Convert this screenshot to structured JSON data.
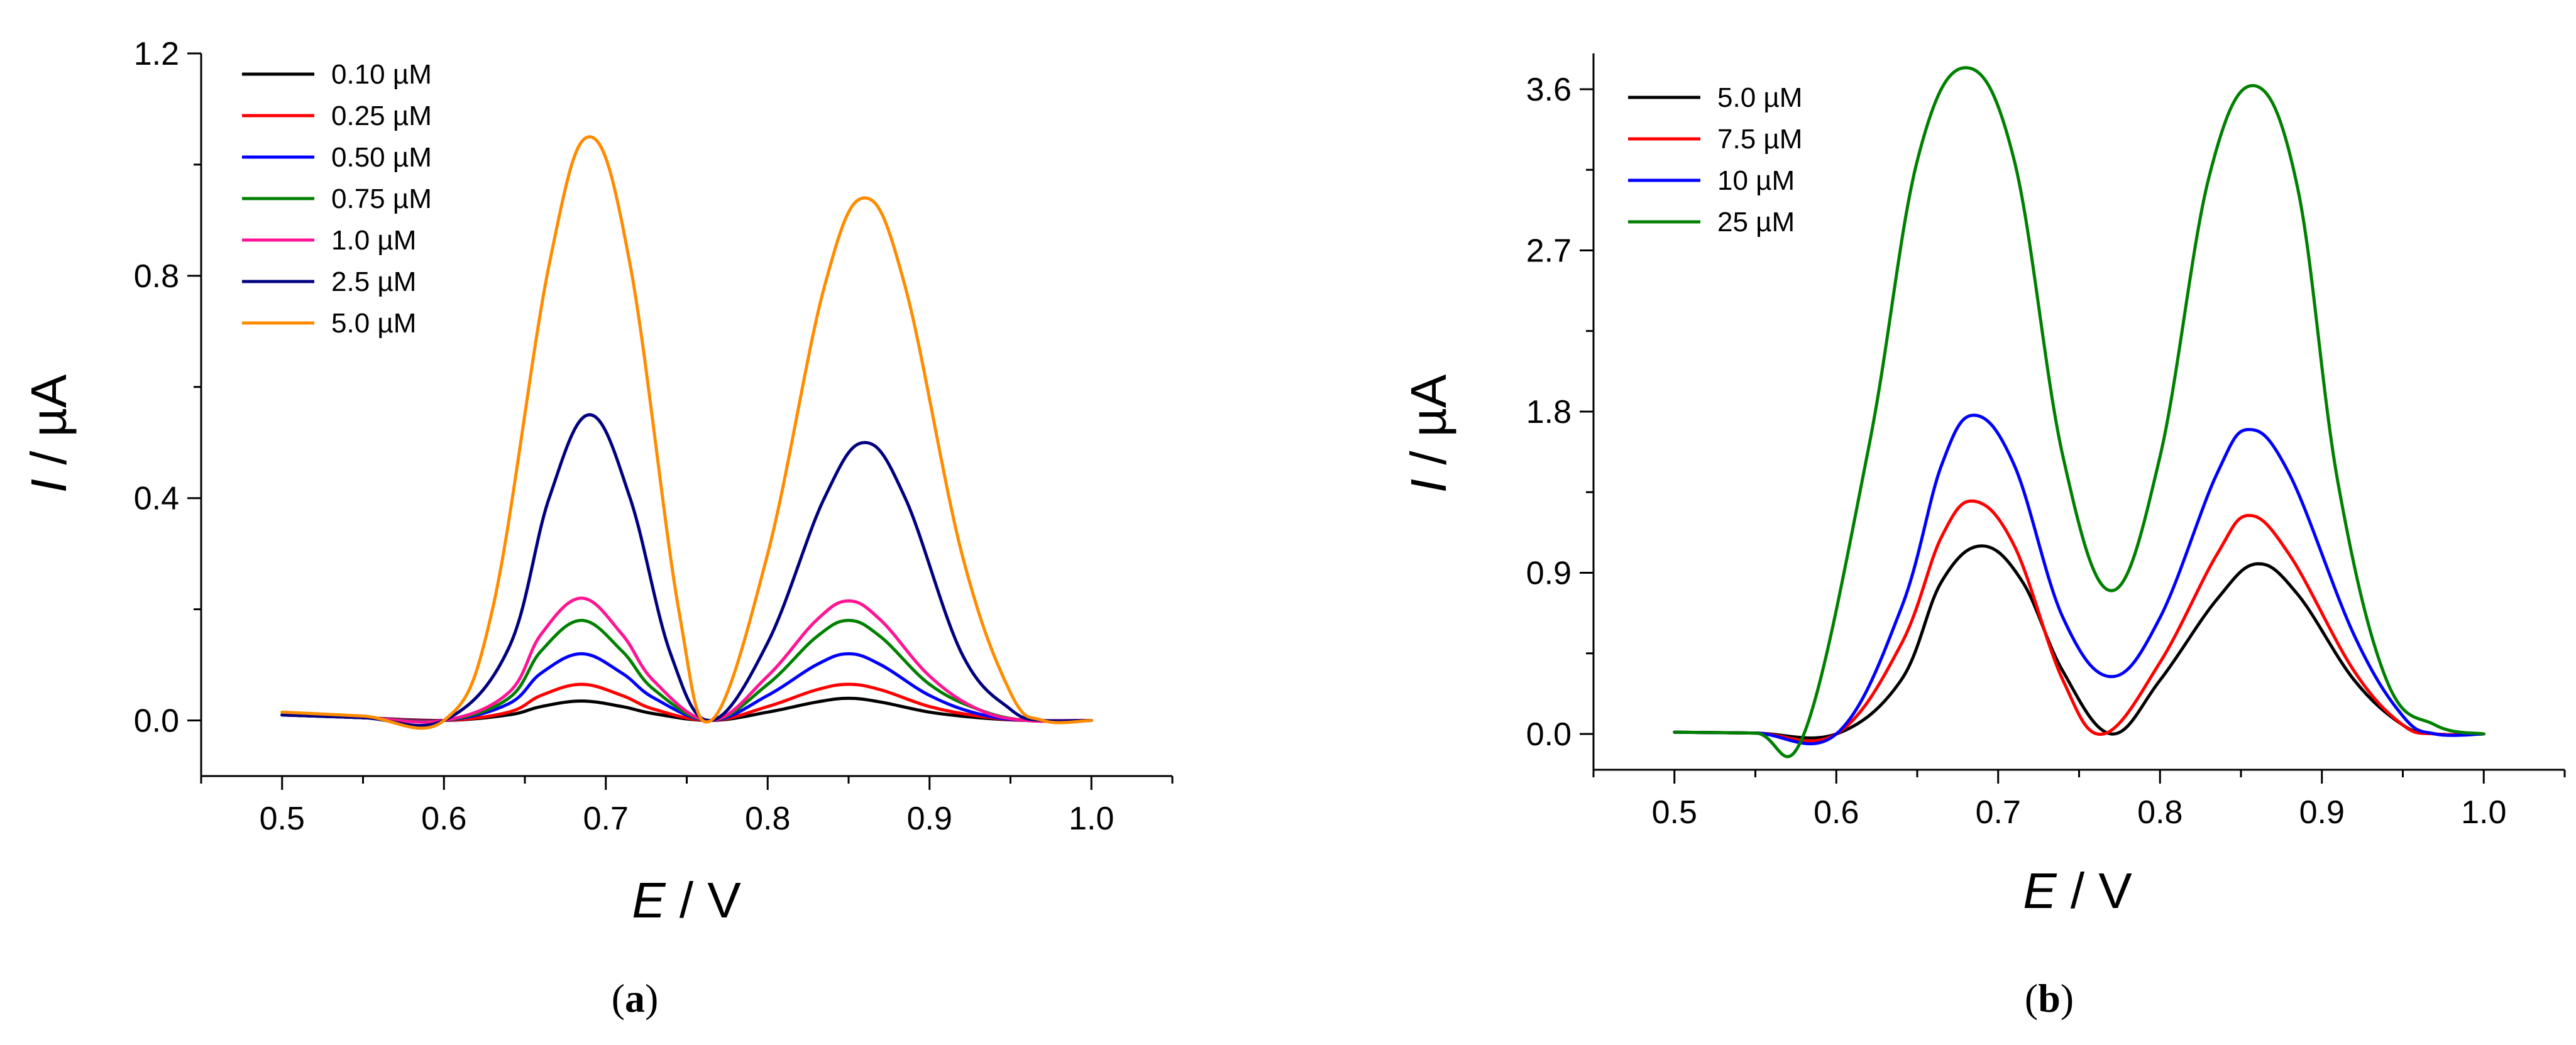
{
  "chart_data": [
    {
      "type": "line",
      "panel_label": "a",
      "xlabel_var": "E",
      "xlabel_unit": " / V",
      "ylabel_var": "I",
      "ylabel_unit": " / µA",
      "xlim": [
        0.45,
        1.05
      ],
      "ylim": [
        -0.1,
        1.2
      ],
      "xticks": [
        0.5,
        0.6,
        0.7,
        0.8,
        0.9,
        1.0
      ],
      "xtick_labels": [
        "0.5",
        "0.6",
        "0.7",
        "0.8",
        "0.9",
        "1.0"
      ],
      "yticks": [
        0.0,
        0.4,
        0.8,
        1.2
      ],
      "ytick_labels": [
        "0.0",
        "0.4",
        "0.8",
        "1.2"
      ],
      "legend_position": "top-left",
      "series": [
        {
          "name": "0.10 µM",
          "color": "#000000",
          "x": [
            0.5,
            0.55,
            0.6,
            0.64,
            0.66,
            0.685,
            0.71,
            0.73,
            0.765,
            0.8,
            0.83,
            0.85,
            0.87,
            0.9,
            0.93,
            0.96,
            1.0
          ],
          "y": [
            0.01,
            0.005,
            0.0,
            0.01,
            0.025,
            0.035,
            0.025,
            0.012,
            0.0,
            0.015,
            0.033,
            0.04,
            0.033,
            0.015,
            0.005,
            0.0,
            0.0
          ]
        },
        {
          "name": "0.25 µM",
          "color": "#ff0000",
          "x": [
            0.5,
            0.55,
            0.6,
            0.64,
            0.66,
            0.685,
            0.71,
            0.73,
            0.765,
            0.8,
            0.83,
            0.85,
            0.87,
            0.9,
            0.93,
            0.96,
            1.0
          ],
          "y": [
            0.01,
            0.005,
            0.0,
            0.015,
            0.045,
            0.065,
            0.045,
            0.02,
            0.0,
            0.025,
            0.055,
            0.065,
            0.055,
            0.025,
            0.008,
            0.0,
            0.0
          ]
        },
        {
          "name": "0.50 µM",
          "color": "#0000ff",
          "x": [
            0.5,
            0.55,
            0.6,
            0.64,
            0.66,
            0.685,
            0.71,
            0.73,
            0.765,
            0.8,
            0.83,
            0.85,
            0.87,
            0.9,
            0.93,
            0.96,
            1.0
          ],
          "y": [
            0.01,
            0.005,
            0.0,
            0.03,
            0.085,
            0.12,
            0.085,
            0.04,
            0.0,
            0.045,
            0.1,
            0.12,
            0.1,
            0.045,
            0.012,
            0.0,
            0.0
          ]
        },
        {
          "name": "0.75 µM",
          "color": "#008000",
          "x": [
            0.5,
            0.55,
            0.6,
            0.64,
            0.66,
            0.685,
            0.71,
            0.73,
            0.765,
            0.8,
            0.83,
            0.85,
            0.87,
            0.9,
            0.93,
            0.96,
            1.0
          ],
          "y": [
            0.01,
            0.005,
            0.0,
            0.04,
            0.125,
            0.18,
            0.125,
            0.055,
            0.0,
            0.065,
            0.15,
            0.18,
            0.15,
            0.065,
            0.02,
            0.0,
            0.0
          ]
        },
        {
          "name": "1.0 µM",
          "color": "#ff1493",
          "x": [
            0.5,
            0.55,
            0.6,
            0.64,
            0.66,
            0.685,
            0.71,
            0.73,
            0.765,
            0.8,
            0.83,
            0.85,
            0.87,
            0.9,
            0.93,
            0.96,
            1.0
          ],
          "y": [
            0.01,
            0.005,
            0.0,
            0.05,
            0.155,
            0.22,
            0.155,
            0.07,
            0.0,
            0.08,
            0.18,
            0.215,
            0.18,
            0.08,
            0.02,
            0.0,
            0.0
          ]
        },
        {
          "name": "2.5 µM",
          "color": "#000080",
          "x": [
            0.5,
            0.55,
            0.6,
            0.64,
            0.665,
            0.69,
            0.715,
            0.74,
            0.765,
            0.8,
            0.835,
            0.86,
            0.885,
            0.92,
            0.95,
            0.97,
            1.0
          ],
          "y": [
            0.01,
            0.005,
            0.0,
            0.13,
            0.4,
            0.55,
            0.4,
            0.12,
            0.0,
            0.14,
            0.4,
            0.5,
            0.4,
            0.12,
            0.02,
            0.0,
            0.0
          ]
        },
        {
          "name": "5.0 µM",
          "color": "#ff8c00",
          "x": [
            0.5,
            0.55,
            0.6,
            0.63,
            0.665,
            0.69,
            0.715,
            0.745,
            0.765,
            0.8,
            0.835,
            0.86,
            0.885,
            0.92,
            0.95,
            0.97,
            1.0
          ],
          "y": [
            0.015,
            0.008,
            0.0,
            0.2,
            0.82,
            1.05,
            0.82,
            0.2,
            0.0,
            0.3,
            0.78,
            0.94,
            0.78,
            0.3,
            0.05,
            0.0,
            0.0
          ]
        }
      ]
    },
    {
      "type": "line",
      "panel_label": "b",
      "xlabel_var": "E",
      "xlabel_unit": " / V",
      "ylabel_var": "I",
      "ylabel_unit": " / µA",
      "xlim": [
        0.45,
        1.05
      ],
      "ylim": [
        -0.2,
        3.8
      ],
      "xticks": [
        0.5,
        0.6,
        0.7,
        0.8,
        0.9,
        1.0
      ],
      "xtick_labels": [
        "0.5",
        "0.6",
        "0.7",
        "0.8",
        "0.9",
        "1.0"
      ],
      "yticks": [
        0.0,
        0.9,
        1.8,
        2.7,
        3.6
      ],
      "ytick_labels": [
        "0.0",
        "0.9",
        "1.8",
        "2.7",
        "3.6"
      ],
      "legend_position": "top-left",
      "series": [
        {
          "name": "5.0 µM",
          "color": "#000000",
          "x": [
            0.5,
            0.55,
            0.6,
            0.64,
            0.665,
            0.69,
            0.715,
            0.74,
            0.77,
            0.8,
            0.835,
            0.86,
            0.885,
            0.92,
            0.95,
            0.97,
            1.0
          ],
          "y": [
            0.01,
            0.005,
            0.0,
            0.3,
            0.85,
            1.05,
            0.85,
            0.35,
            0.0,
            0.3,
            0.75,
            0.95,
            0.78,
            0.3,
            0.05,
            0.0,
            0.0
          ]
        },
        {
          "name": "7.5 µM",
          "color": "#ff0000",
          "x": [
            0.5,
            0.55,
            0.6,
            0.64,
            0.665,
            0.685,
            0.71,
            0.74,
            0.765,
            0.8,
            0.835,
            0.855,
            0.88,
            0.92,
            0.95,
            0.97,
            1.0
          ],
          "y": [
            0.01,
            0.005,
            0.0,
            0.5,
            1.1,
            1.3,
            1.05,
            0.3,
            0.0,
            0.4,
            1.0,
            1.22,
            1.0,
            0.35,
            0.05,
            0.0,
            0.0
          ]
        },
        {
          "name": "10 µM",
          "color": "#0000ff",
          "x": [
            0.5,
            0.55,
            0.6,
            0.64,
            0.665,
            0.685,
            0.71,
            0.74,
            0.77,
            0.8,
            0.835,
            0.855,
            0.88,
            0.92,
            0.95,
            0.97,
            1.0
          ],
          "y": [
            0.01,
            0.005,
            0.0,
            0.7,
            1.5,
            1.78,
            1.5,
            0.65,
            0.32,
            0.65,
            1.45,
            1.7,
            1.45,
            0.55,
            0.1,
            0.0,
            0.0
          ]
        },
        {
          "name": "25 µM",
          "color": "#008000",
          "x": [
            0.5,
            0.55,
            0.58,
            0.62,
            0.65,
            0.68,
            0.71,
            0.74,
            0.77,
            0.8,
            0.83,
            0.858,
            0.885,
            0.91,
            0.94,
            0.97,
            1.0
          ],
          "y": [
            0.01,
            0.005,
            0.0,
            1.6,
            3.2,
            3.72,
            3.2,
            1.55,
            0.8,
            1.55,
            3.1,
            3.62,
            3.05,
            1.4,
            0.3,
            0.05,
            0.0
          ]
        }
      ]
    }
  ]
}
